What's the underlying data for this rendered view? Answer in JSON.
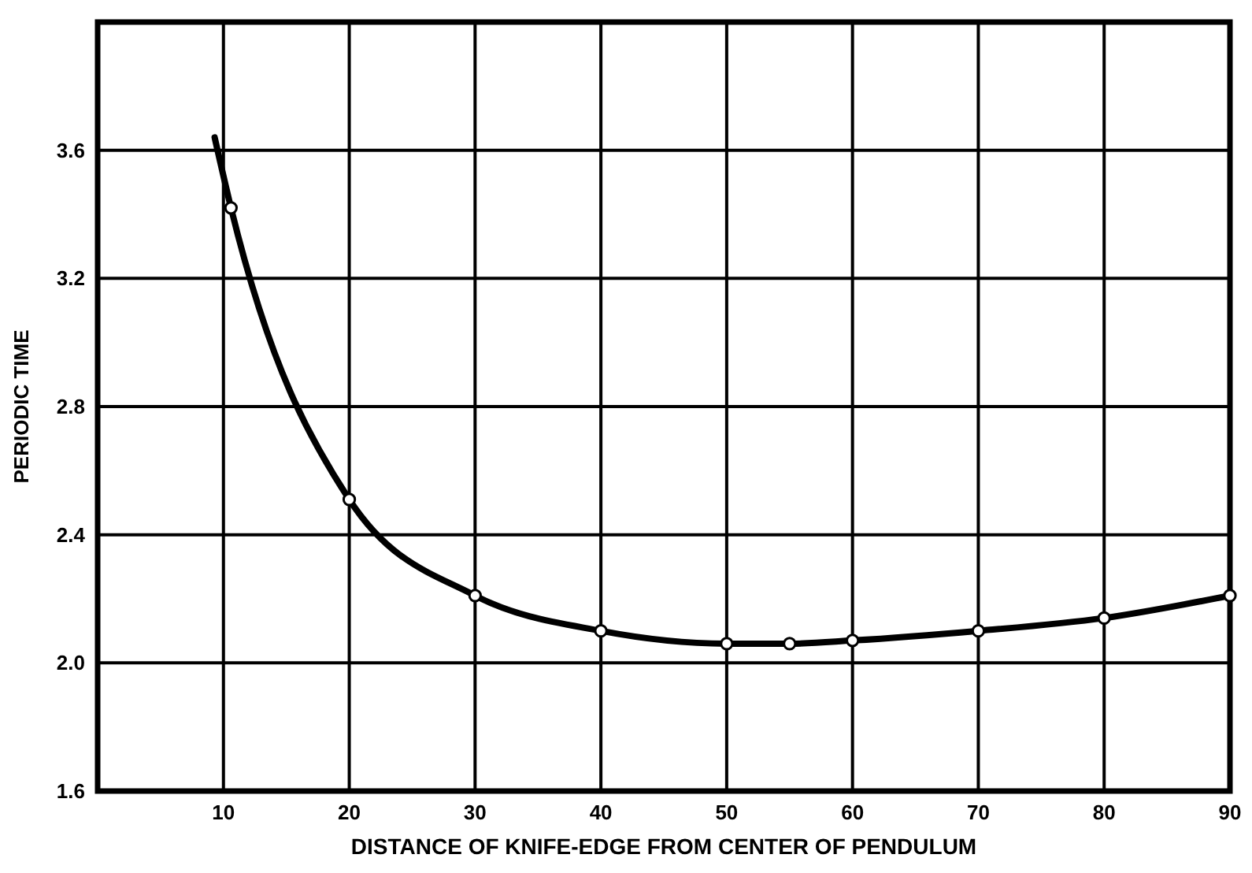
{
  "chart_data": {
    "type": "line",
    "xlabel": "DISTANCE OF KNIFE-EDGE FROM CENTER OF PENDULUM",
    "ylabel": "PERIODIC TIME",
    "xlim": [
      0,
      90
    ],
    "xticks": [
      10,
      20,
      30,
      40,
      50,
      60,
      70,
      80,
      90
    ],
    "ylim": [
      1.6,
      4.0
    ],
    "yticks": [
      1.6,
      {
        "value": 2,
        "label": "2.0"
      },
      2.4,
      2.8,
      3.2,
      3.6
    ],
    "grid": true,
    "series": [
      {
        "color": "#000000",
        "marker": "none",
        "x": [
          9.3,
          10.6,
          20,
          30,
          40,
          50,
          55,
          60,
          70,
          80,
          90
        ],
        "values": [
          3.64,
          3.42,
          2.51,
          2.21,
          2.1,
          2.06,
          2.06,
          2.07,
          2.1,
          2.14,
          2.21
        ]
      },
      {
        "type": "scatter",
        "color": "#000000",
        "marker": "circle",
        "x": [
          10.6,
          20,
          30,
          40,
          50,
          55,
          60,
          70,
          80,
          90
        ],
        "values": [
          3.42,
          2.51,
          2.21,
          2.1,
          2.06,
          2.06,
          2.07,
          2.1,
          2.14,
          2.21
        ]
      }
    ]
  }
}
